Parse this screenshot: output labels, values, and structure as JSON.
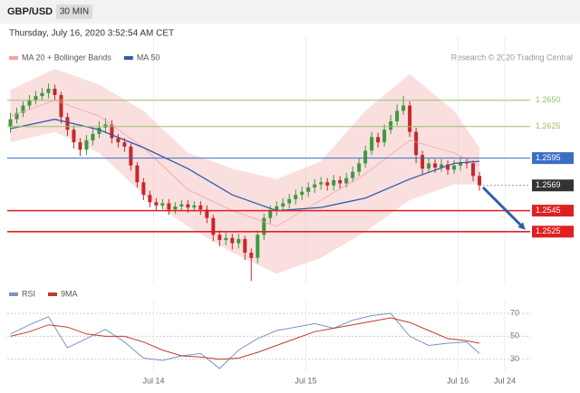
{
  "header": {
    "symbol": "GBP/USD",
    "interval": "30 MIN",
    "timestamp": "Thursday, July 16, 2020 3:52:54 AM CET",
    "credit": "Research © 2020 Trading Central"
  },
  "chart_data": [
    {
      "type": "candlestick",
      "xlim": [
        -0.5,
        82
      ],
      "ylim": [
        1.2474,
        1.2711
      ],
      "yticks": [
        {
          "value": 1.265,
          "label": "1.2650"
        },
        {
          "value": 1.2625,
          "label": "1.2625"
        },
        1.2595,
        1.2569,
        1.2545,
        1.2525
      ],
      "ytick_colors": [
        "#9dbf6e",
        "#9dbf6e",
        "#3a6fc4",
        "#333333",
        "#e02020",
        "#e02020"
      ],
      "ytick_boxed": [
        false,
        false,
        true,
        true,
        true,
        true
      ],
      "ytick_styles": [
        "solid",
        "solid",
        "solid",
        "dotted",
        "solid",
        "solid"
      ],
      "up_color": "#3c9a3c",
      "down_color": "#c62828",
      "open": [
        1.2625,
        1.2632,
        1.2638,
        1.2645,
        1.265,
        1.2654,
        1.2657,
        1.2661,
        1.2655,
        1.2634,
        1.2622,
        1.261,
        1.2603,
        1.2612,
        1.2618,
        1.2624,
        1.2627,
        1.2614,
        1.261,
        1.2606,
        1.2588,
        1.2572,
        1.256,
        1.2553,
        1.255,
        1.2552,
        1.2546,
        1.2549,
        1.2551,
        1.2548,
        1.255,
        1.2546,
        1.2538,
        1.2522,
        1.2517,
        1.2519,
        1.2514,
        1.2518,
        1.2505,
        1.25,
        1.2522,
        1.2538,
        1.2545,
        1.2549,
        1.2552,
        1.2556,
        1.256,
        1.2563,
        1.2567,
        1.257,
        1.2572,
        1.2569,
        1.2574,
        1.2571,
        1.2576,
        1.2582,
        1.259,
        1.2602,
        1.2615,
        1.261,
        1.2622,
        1.263,
        1.264,
        1.2645,
        1.262,
        1.2598,
        1.2585,
        1.259,
        1.2586,
        1.2589,
        1.2584,
        1.2588,
        1.2591,
        1.259,
        1.2578
      ],
      "high": [
        1.2638,
        1.2643,
        1.2649,
        1.2655,
        1.2659,
        1.2662,
        1.2666,
        1.2665,
        1.2658,
        1.2638,
        1.2626,
        1.2614,
        1.2617,
        1.2623,
        1.263,
        1.2633,
        1.2631,
        1.2618,
        1.2614,
        1.2609,
        1.2591,
        1.2576,
        1.2564,
        1.2557,
        1.2556,
        1.2556,
        1.2553,
        1.2555,
        1.2555,
        1.2554,
        1.2554,
        1.255,
        1.2541,
        1.2526,
        1.2524,
        1.2523,
        1.2523,
        1.2521,
        1.2509,
        1.2526,
        1.2542,
        1.255,
        1.2554,
        1.2557,
        1.2561,
        1.2565,
        1.2568,
        1.2572,
        1.2575,
        1.2577,
        1.2576,
        1.2579,
        1.2578,
        1.2581,
        1.2587,
        1.2595,
        1.2607,
        1.262,
        1.2619,
        1.2627,
        1.2636,
        1.2646,
        1.2654,
        1.2649,
        1.2624,
        1.2602,
        1.2595,
        1.2594,
        1.2594,
        1.2593,
        1.2593,
        1.2596,
        1.2595,
        1.2593,
        1.2582
      ],
      "low": [
        1.2619,
        1.2628,
        1.2634,
        1.2641,
        1.2646,
        1.265,
        1.2652,
        1.265,
        1.2628,
        1.2616,
        1.2604,
        1.2597,
        1.2598,
        1.2607,
        1.2614,
        1.2619,
        1.2609,
        1.2605,
        1.2601,
        1.2583,
        1.2567,
        1.2555,
        1.2548,
        1.2545,
        1.2546,
        1.2541,
        1.2542,
        1.2545,
        1.2543,
        1.2544,
        1.2541,
        1.2533,
        1.2516,
        1.2511,
        1.2512,
        1.2508,
        1.2509,
        1.2498,
        1.2478,
        1.2495,
        1.2517,
        1.2533,
        1.254,
        1.2544,
        1.2547,
        1.2551,
        1.2555,
        1.2558,
        1.2562,
        1.2565,
        1.2564,
        1.2564,
        1.2566,
        1.2567,
        1.2572,
        1.2578,
        1.2586,
        1.2598,
        1.2605,
        1.2606,
        1.2618,
        1.2626,
        1.2636,
        1.2615,
        1.259,
        1.258,
        1.2581,
        1.2581,
        1.2582,
        1.2579,
        1.258,
        1.2583,
        1.2585,
        1.2573,
        1.2564
      ],
      "close": [
        1.2632,
        1.2638,
        1.2645,
        1.265,
        1.2654,
        1.2657,
        1.2661,
        1.2655,
        1.2634,
        1.2622,
        1.261,
        1.2603,
        1.2612,
        1.2618,
        1.2624,
        1.2627,
        1.2614,
        1.261,
        1.2606,
        1.2588,
        1.2572,
        1.256,
        1.2553,
        1.255,
        1.2552,
        1.2546,
        1.2549,
        1.2551,
        1.2548,
        1.255,
        1.2546,
        1.2538,
        1.2522,
        1.2517,
        1.2519,
        1.2514,
        1.2518,
        1.2505,
        1.25,
        1.2522,
        1.2538,
        1.2545,
        1.2549,
        1.2552,
        1.2556,
        1.256,
        1.2563,
        1.2567,
        1.257,
        1.2572,
        1.2569,
        1.2574,
        1.2571,
        1.2576,
        1.2582,
        1.259,
        1.2602,
        1.2615,
        1.261,
        1.2622,
        1.263,
        1.264,
        1.2645,
        1.262,
        1.2598,
        1.2585,
        1.259,
        1.2586,
        1.2589,
        1.2584,
        1.2588,
        1.2591,
        1.259,
        1.2578,
        1.2569
      ],
      "series": [
        {
          "name": "MA 20 + Bollinger Bands",
          "color": "#f2a3a3",
          "x": [
            0,
            7,
            14,
            21,
            28,
            35,
            42,
            49,
            56,
            63,
            70,
            74
          ],
          "values": [
            1.2635,
            1.265,
            1.2635,
            1.2605,
            1.2565,
            1.2545,
            1.253,
            1.2555,
            1.258,
            1.2612,
            1.26,
            1.2588
          ],
          "upper": [
            1.266,
            1.268,
            1.2665,
            1.264,
            1.26,
            1.2585,
            1.2575,
            1.2592,
            1.264,
            1.2675,
            1.264,
            1.2605
          ],
          "lower": [
            1.261,
            1.262,
            1.26,
            1.256,
            1.253,
            1.2505,
            1.2485,
            1.25,
            1.2525,
            1.2555,
            1.257,
            1.257
          ]
        },
        {
          "name": "MA 50",
          "color": "#2f5ea8",
          "x": [
            0,
            7,
            14,
            21,
            28,
            35,
            42,
            49,
            56,
            63,
            70,
            74
          ],
          "values": [
            1.2623,
            1.2632,
            1.2622,
            1.2605,
            1.2585,
            1.256,
            1.2545,
            1.2548,
            1.2557,
            1.2575,
            1.259,
            1.2592
          ]
        }
      ]
    },
    {
      "type": "line",
      "xlim": [
        -0.5,
        82
      ],
      "xticks": [
        {
          "value": 22.6,
          "label": "Jul 14"
        },
        {
          "value": 46.6,
          "label": "Jul 15"
        },
        {
          "value": 70.6,
          "label": "Jul 16"
        },
        {
          "value": 78,
          "label": "Jul 24"
        }
      ],
      "ylim": [
        18,
        81
      ],
      "yticks": [
        30,
        50,
        70
      ],
      "series": [
        {
          "name": "RSI",
          "color": "#7b93c7",
          "x": [
            0,
            3,
            6,
            9,
            12,
            15,
            18,
            21,
            24,
            27,
            30,
            33,
            36,
            39,
            42,
            45,
            48,
            51,
            54,
            57,
            60,
            63,
            66,
            69,
            72,
            74
          ],
          "values": [
            52,
            60,
            67,
            40,
            48,
            56,
            45,
            31,
            29,
            33,
            35,
            22,
            38,
            48,
            55,
            58,
            61,
            57,
            64,
            68,
            70,
            50,
            42,
            44,
            45,
            35
          ]
        },
        {
          "name": "9MA",
          "color": "#c0392b",
          "x": [
            0,
            3,
            6,
            9,
            12,
            15,
            18,
            21,
            24,
            27,
            30,
            33,
            36,
            39,
            42,
            45,
            48,
            51,
            54,
            57,
            60,
            63,
            66,
            69,
            72,
            74
          ],
          "values": [
            50,
            54,
            60,
            58,
            52,
            50,
            50,
            45,
            38,
            33,
            32,
            30,
            31,
            36,
            42,
            48,
            54,
            57,
            60,
            63,
            66,
            62,
            55,
            48,
            46,
            44
          ]
        }
      ]
    }
  ]
}
